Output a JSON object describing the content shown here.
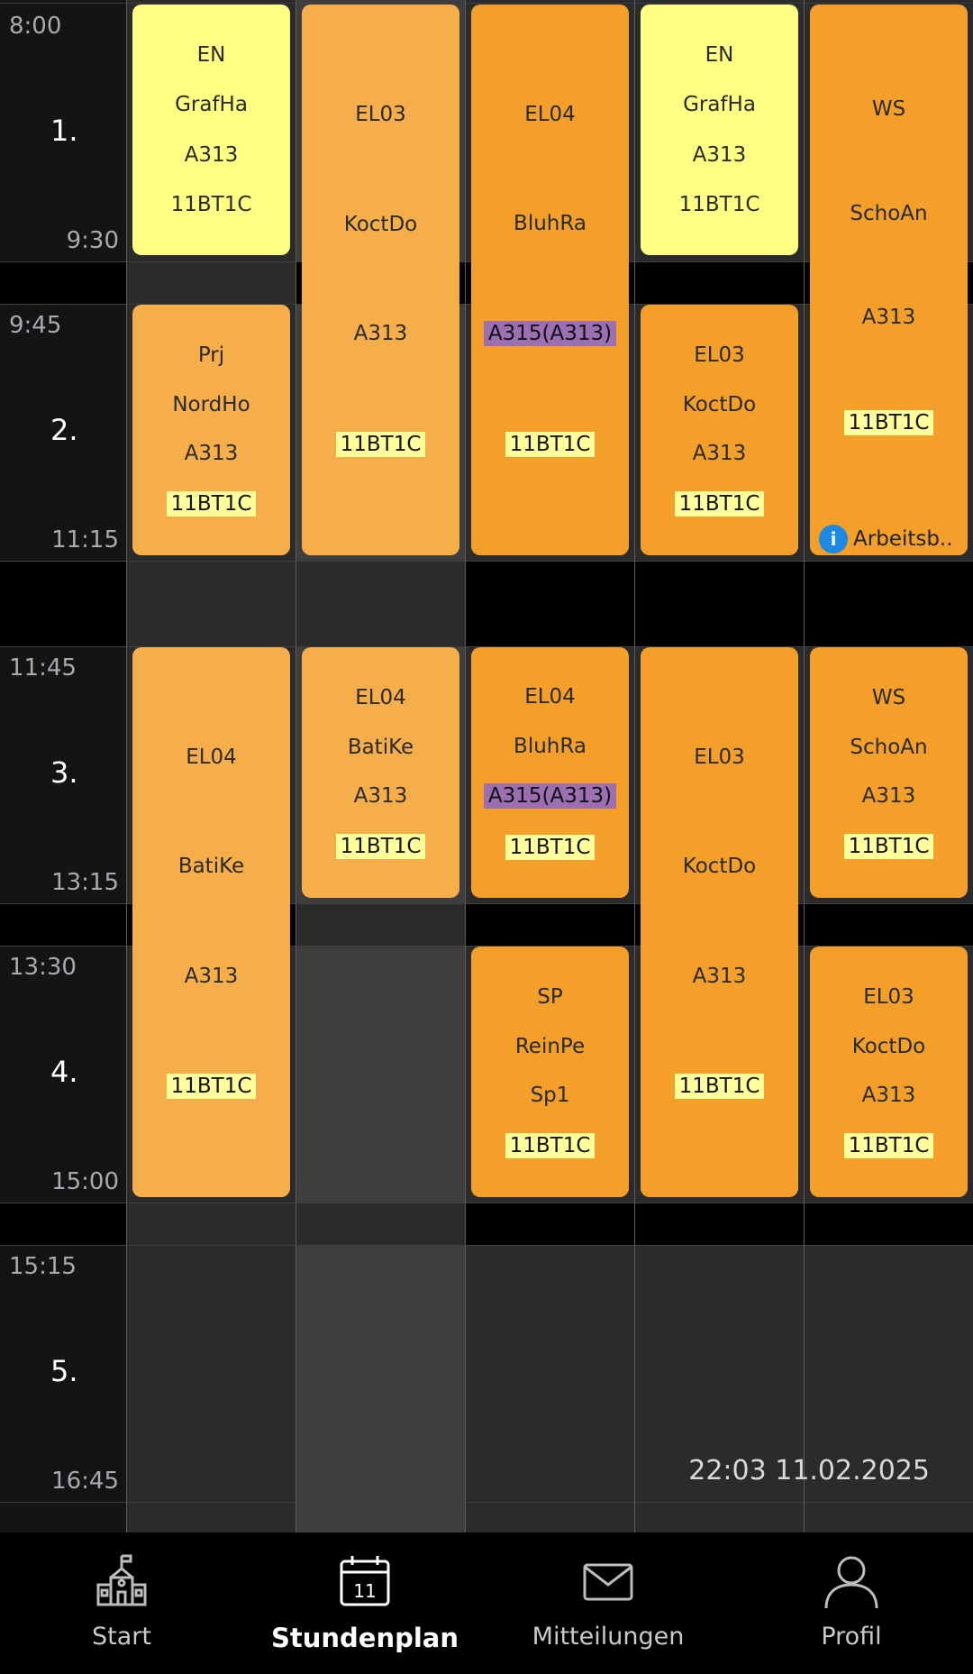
{
  "timetable": {
    "periods": [
      {
        "label": "1.",
        "start": "8:00",
        "end": "9:30"
      },
      {
        "label": "2.",
        "start": "9:45",
        "end": "11:15"
      },
      {
        "label": "3.",
        "start": "11:45",
        "end": "13:15"
      },
      {
        "label": "4.",
        "start": "13:30",
        "end": "15:00"
      },
      {
        "label": "5.",
        "start": "15:15",
        "end": "16:45"
      }
    ],
    "lessons": [
      {
        "subject": "EN",
        "teacher": "GrafHa",
        "room": "A313",
        "class": "11BT1C",
        "color": "#ffff84"
      },
      {
        "subject": "Prj",
        "teacher": "NordHo",
        "room": "A313",
        "class": "11BT1C",
        "color": "#f5ae4a"
      },
      {
        "subject": "EL04",
        "teacher": "BatiKe",
        "room": "A313",
        "class": "11BT1C",
        "color": "#f5ae4a"
      },
      {
        "subject": "EL03",
        "teacher": "KoctDo",
        "room": "A313",
        "class": "11BT1C",
        "color": "#f5ae4a"
      },
      {
        "subject": "EL04",
        "teacher": "BatiKe",
        "room": "A313",
        "class": "11BT1C",
        "color": "#f5ae4a"
      },
      {
        "subject": "EL04",
        "teacher": "BluhRa",
        "room": "A315(A313)",
        "class": "11BT1C",
        "color": "#f39f2a"
      },
      {
        "subject": "EL04",
        "teacher": "BluhRa",
        "room": "A315(A313)",
        "class": "11BT1C",
        "color": "#f39f2a"
      },
      {
        "subject": "SP",
        "teacher": "ReinPe",
        "room": "Sp1",
        "class": "11BT1C",
        "color": "#f39f2a"
      },
      {
        "subject": "EN",
        "teacher": "GrafHa",
        "room": "A313",
        "class": "11BT1C",
        "color": "#ffff84"
      },
      {
        "subject": "EL03",
        "teacher": "KoctDo",
        "room": "A313",
        "class": "11BT1C",
        "color": "#f39f2a"
      },
      {
        "subject": "EL03",
        "teacher": "KoctDo",
        "room": "A313",
        "class": "11BT1C",
        "color": "#f39f2a"
      },
      {
        "subject": "WS",
        "teacher": "SchoAn",
        "room": "A313",
        "class": "11BT1C",
        "color": "#f39f2a",
        "info": "Arbeitsb.."
      },
      {
        "subject": "WS",
        "teacher": "SchoAn",
        "room": "A313",
        "class": "11BT1C",
        "color": "#f39f2a"
      },
      {
        "subject": "EL03",
        "teacher": "KoctDo",
        "room": "A313",
        "class": "11BT1C",
        "color": "#f39f2a"
      }
    ],
    "timestamp": "22:03 11.02.2025"
  },
  "nav": {
    "items": [
      {
        "label": "Start",
        "icon": "school-icon"
      },
      {
        "label": "Stundenplan",
        "icon": "calendar-icon",
        "day": "11",
        "active": true
      },
      {
        "label": "Mitteilungen",
        "icon": "mail-icon"
      },
      {
        "label": "Profil",
        "icon": "profile-icon"
      }
    ]
  },
  "colors": {
    "yellow": "#ffff84",
    "light_orange": "#f5ae4a",
    "orange": "#f39f2a",
    "class_chip": "#ffff9b",
    "room_changed_chip": "#9c6fb2",
    "info_blue": "#1e88e5"
  }
}
